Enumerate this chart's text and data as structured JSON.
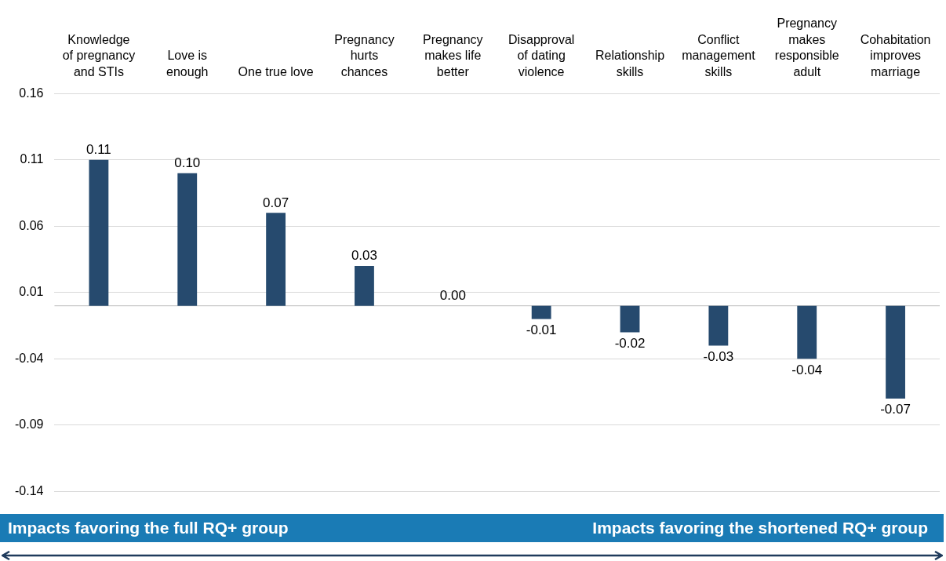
{
  "chart_data": {
    "type": "bar",
    "categories": [
      "Knowledge\nof pregnancy\nand STIs",
      "Love is\nenough",
      "One true love",
      "Pregnancy\nhurts\nchances",
      "Pregnancy\nmakes life\nbetter",
      "Disapproval\nof dating\nviolence",
      "Relationship\nskills",
      "Conflict\nmanagement\nskills",
      "Pregnancy\nmakes\nresponsible\nadult",
      "Cohabitation\nimproves\nmarriage"
    ],
    "values": [
      0.11,
      0.1,
      0.07,
      0.03,
      0,
      -0.01,
      -0.02,
      -0.03,
      -0.04,
      -0.07
    ],
    "value_labels": [
      "0.11",
      "0.10",
      "0.07",
      "0.03",
      "0.00",
      "-0.01",
      "-0.02",
      "-0.03",
      "-0.04",
      "-0.07"
    ],
    "color": "#264a6e",
    "ylim": [
      -0.14,
      0.16
    ],
    "yticks": [
      -0.14,
      -0.09,
      -0.04,
      0.01,
      0.06,
      0.11,
      0.16
    ],
    "grid": "y",
    "ref_lines": [
      {
        "axis": "y",
        "value": 0,
        "color": "#bfbfbf"
      }
    ],
    "annotations": [
      "Impacts favoring the full RQ+ group",
      "Impacts favoring the shortened RQ+ group"
    ]
  }
}
